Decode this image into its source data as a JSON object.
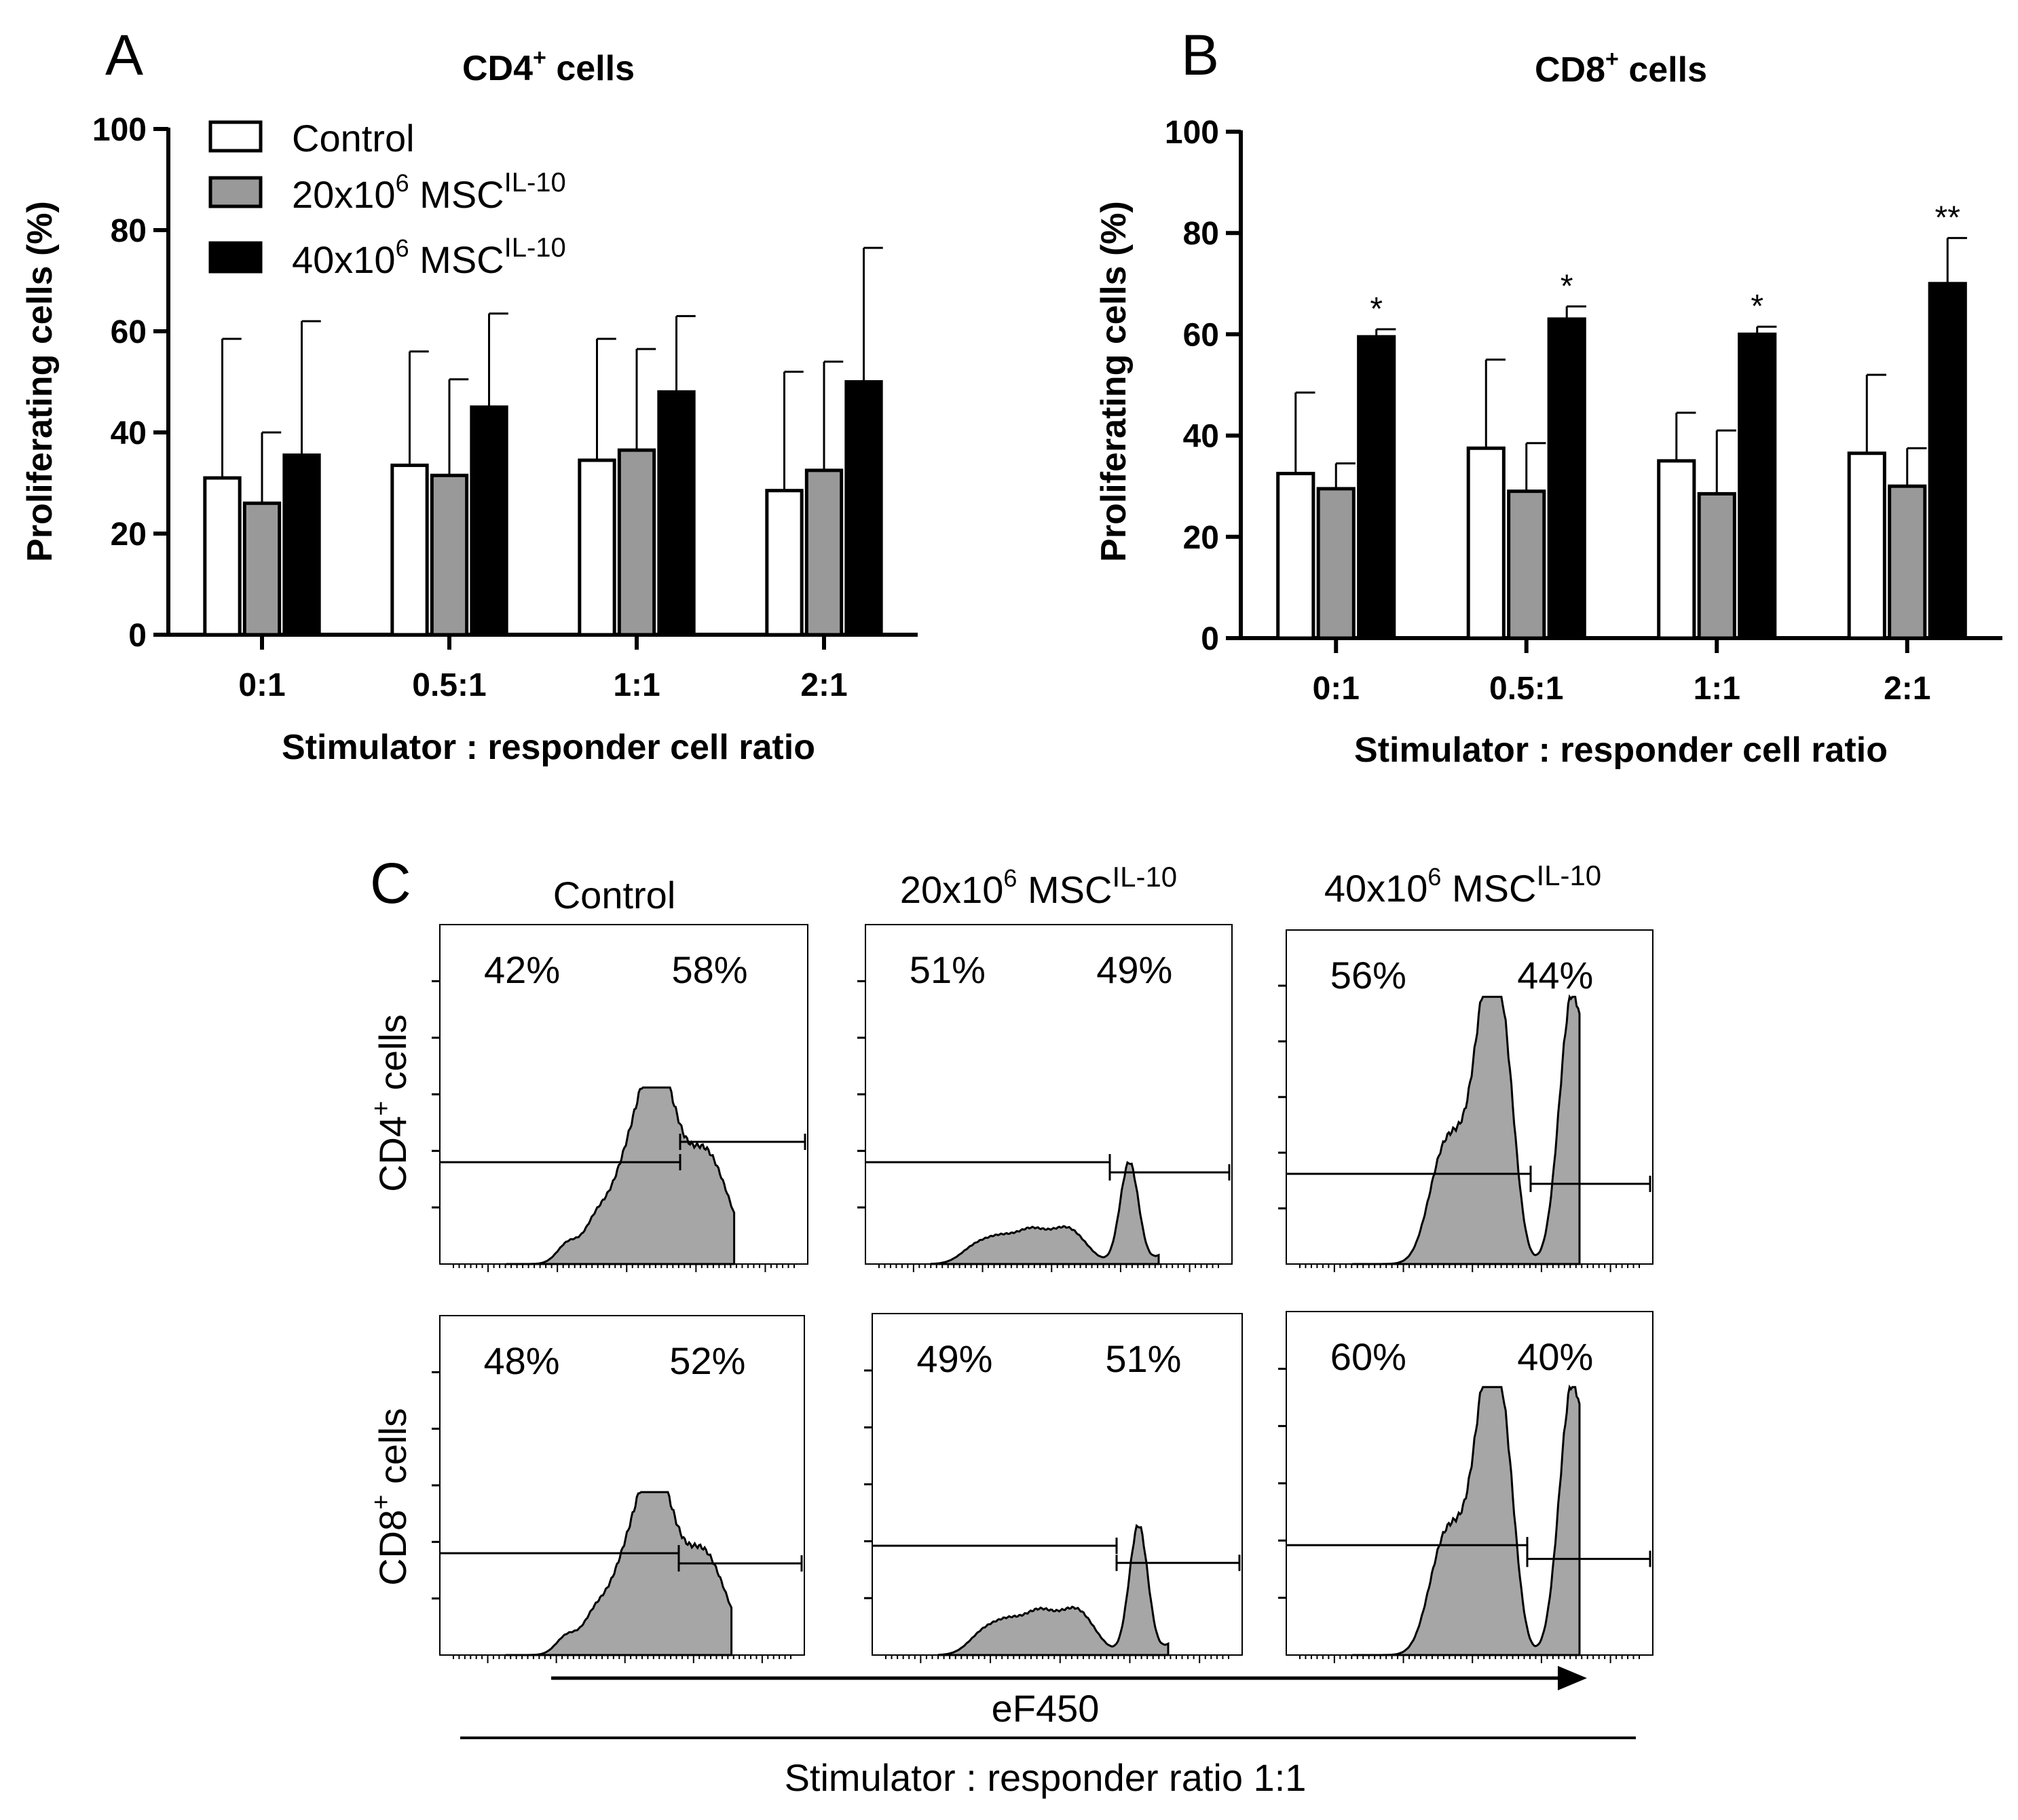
{
  "panel_letters": {
    "a": "A",
    "b": "B",
    "c": "C"
  },
  "legend": {
    "control": "Control",
    "msc20": {
      "base": "20x10",
      "sup1": "6",
      "mid": " MSC",
      "sup2": "IL-10"
    },
    "msc40": {
      "base": "40x10",
      "sup1": "6",
      "mid": " MSC",
      "sup2": "IL-10"
    }
  },
  "colors": {
    "control": "#ffffff",
    "msc20": "#999999",
    "msc40": "#000000",
    "histogram_fill": "#a6a6a6"
  },
  "chart_data": [
    {
      "id": "A",
      "type": "bar",
      "title": {
        "base": "CD4",
        "sup": "+",
        "rest": " cells"
      },
      "xlabel": "Stimulator : responder cell ratio",
      "ylabel": "Proliferating cells (%)",
      "ylim": [
        0,
        100
      ],
      "yticks": [
        "0",
        "20",
        "40",
        "60",
        "80",
        "100"
      ],
      "categories": [
        "0:1",
        "0.5:1",
        "1:1",
        "2:1"
      ],
      "series": [
        {
          "name": "Control",
          "values": [
            31,
            33.5,
            34.5,
            28.5
          ],
          "errors": [
            27.5,
            22.5,
            24,
            23.5
          ]
        },
        {
          "name": "20x10^6 MSC IL-10",
          "values": [
            26,
            31.5,
            36.5,
            32.5
          ],
          "errors": [
            14,
            19,
            20,
            21.5
          ]
        },
        {
          "name": "40x10^6 MSC IL-10",
          "values": [
            35.5,
            45,
            48,
            50
          ],
          "errors": [
            26.5,
            18.5,
            15,
            26.5
          ]
        }
      ],
      "annotations": [
        "",
        "",
        "",
        ""
      ]
    },
    {
      "id": "B",
      "type": "bar",
      "title": {
        "base": "CD8",
        "sup": "+",
        "rest": " cells"
      },
      "xlabel": "Stimulator : responder cell ratio",
      "ylabel": "Proliferating cells (%)",
      "ylim": [
        0,
        100
      ],
      "yticks": [
        "0",
        "20",
        "40",
        "60",
        "80",
        "100"
      ],
      "categories": [
        "0:1",
        "0.5:1",
        "1:1",
        "2:1"
      ],
      "series": [
        {
          "name": "Control",
          "values": [
            32.5,
            37.5,
            35,
            36.5
          ],
          "errors": [
            16,
            17.5,
            9.5,
            15.5
          ]
        },
        {
          "name": "20x10^6 MSC IL-10",
          "values": [
            29.5,
            29,
            28.5,
            30
          ],
          "errors": [
            5,
            9.5,
            12.5,
            7.5
          ]
        },
        {
          "name": "40x10^6 MSC IL-10",
          "values": [
            59.5,
            63,
            60,
            70
          ],
          "errors": [
            1.5,
            2.5,
            1.5,
            9
          ]
        }
      ],
      "annotations": [
        "*",
        "*",
        "*",
        "**"
      ]
    }
  ],
  "flow": {
    "columns": [
      {
        "base": "Control",
        "sup1": "",
        "mid": "",
        "sup2": ""
      },
      {
        "base": "20x10",
        "sup1": "6",
        "mid": " MSC",
        "sup2": "IL-10"
      },
      {
        "base": "40x10",
        "sup1": "6",
        "mid": " MSC",
        "sup2": "IL-10"
      }
    ],
    "rows": [
      {
        "base": "CD4",
        "sup": "+",
        "rest": " cells"
      },
      {
        "base": "CD8",
        "sup": "+",
        "rest": " cells"
      }
    ],
    "percentages": [
      [
        [
          "42%",
          "58%"
        ],
        [
          "51%",
          "49%"
        ],
        [
          "56%",
          "44%"
        ]
      ],
      [
        [
          "48%",
          "52%"
        ],
        [
          "49%",
          "51%"
        ],
        [
          "60%",
          "40%"
        ]
      ]
    ],
    "x_axis_label": "eF450",
    "bottom_label": "Stimulator : responder ratio 1:1"
  }
}
